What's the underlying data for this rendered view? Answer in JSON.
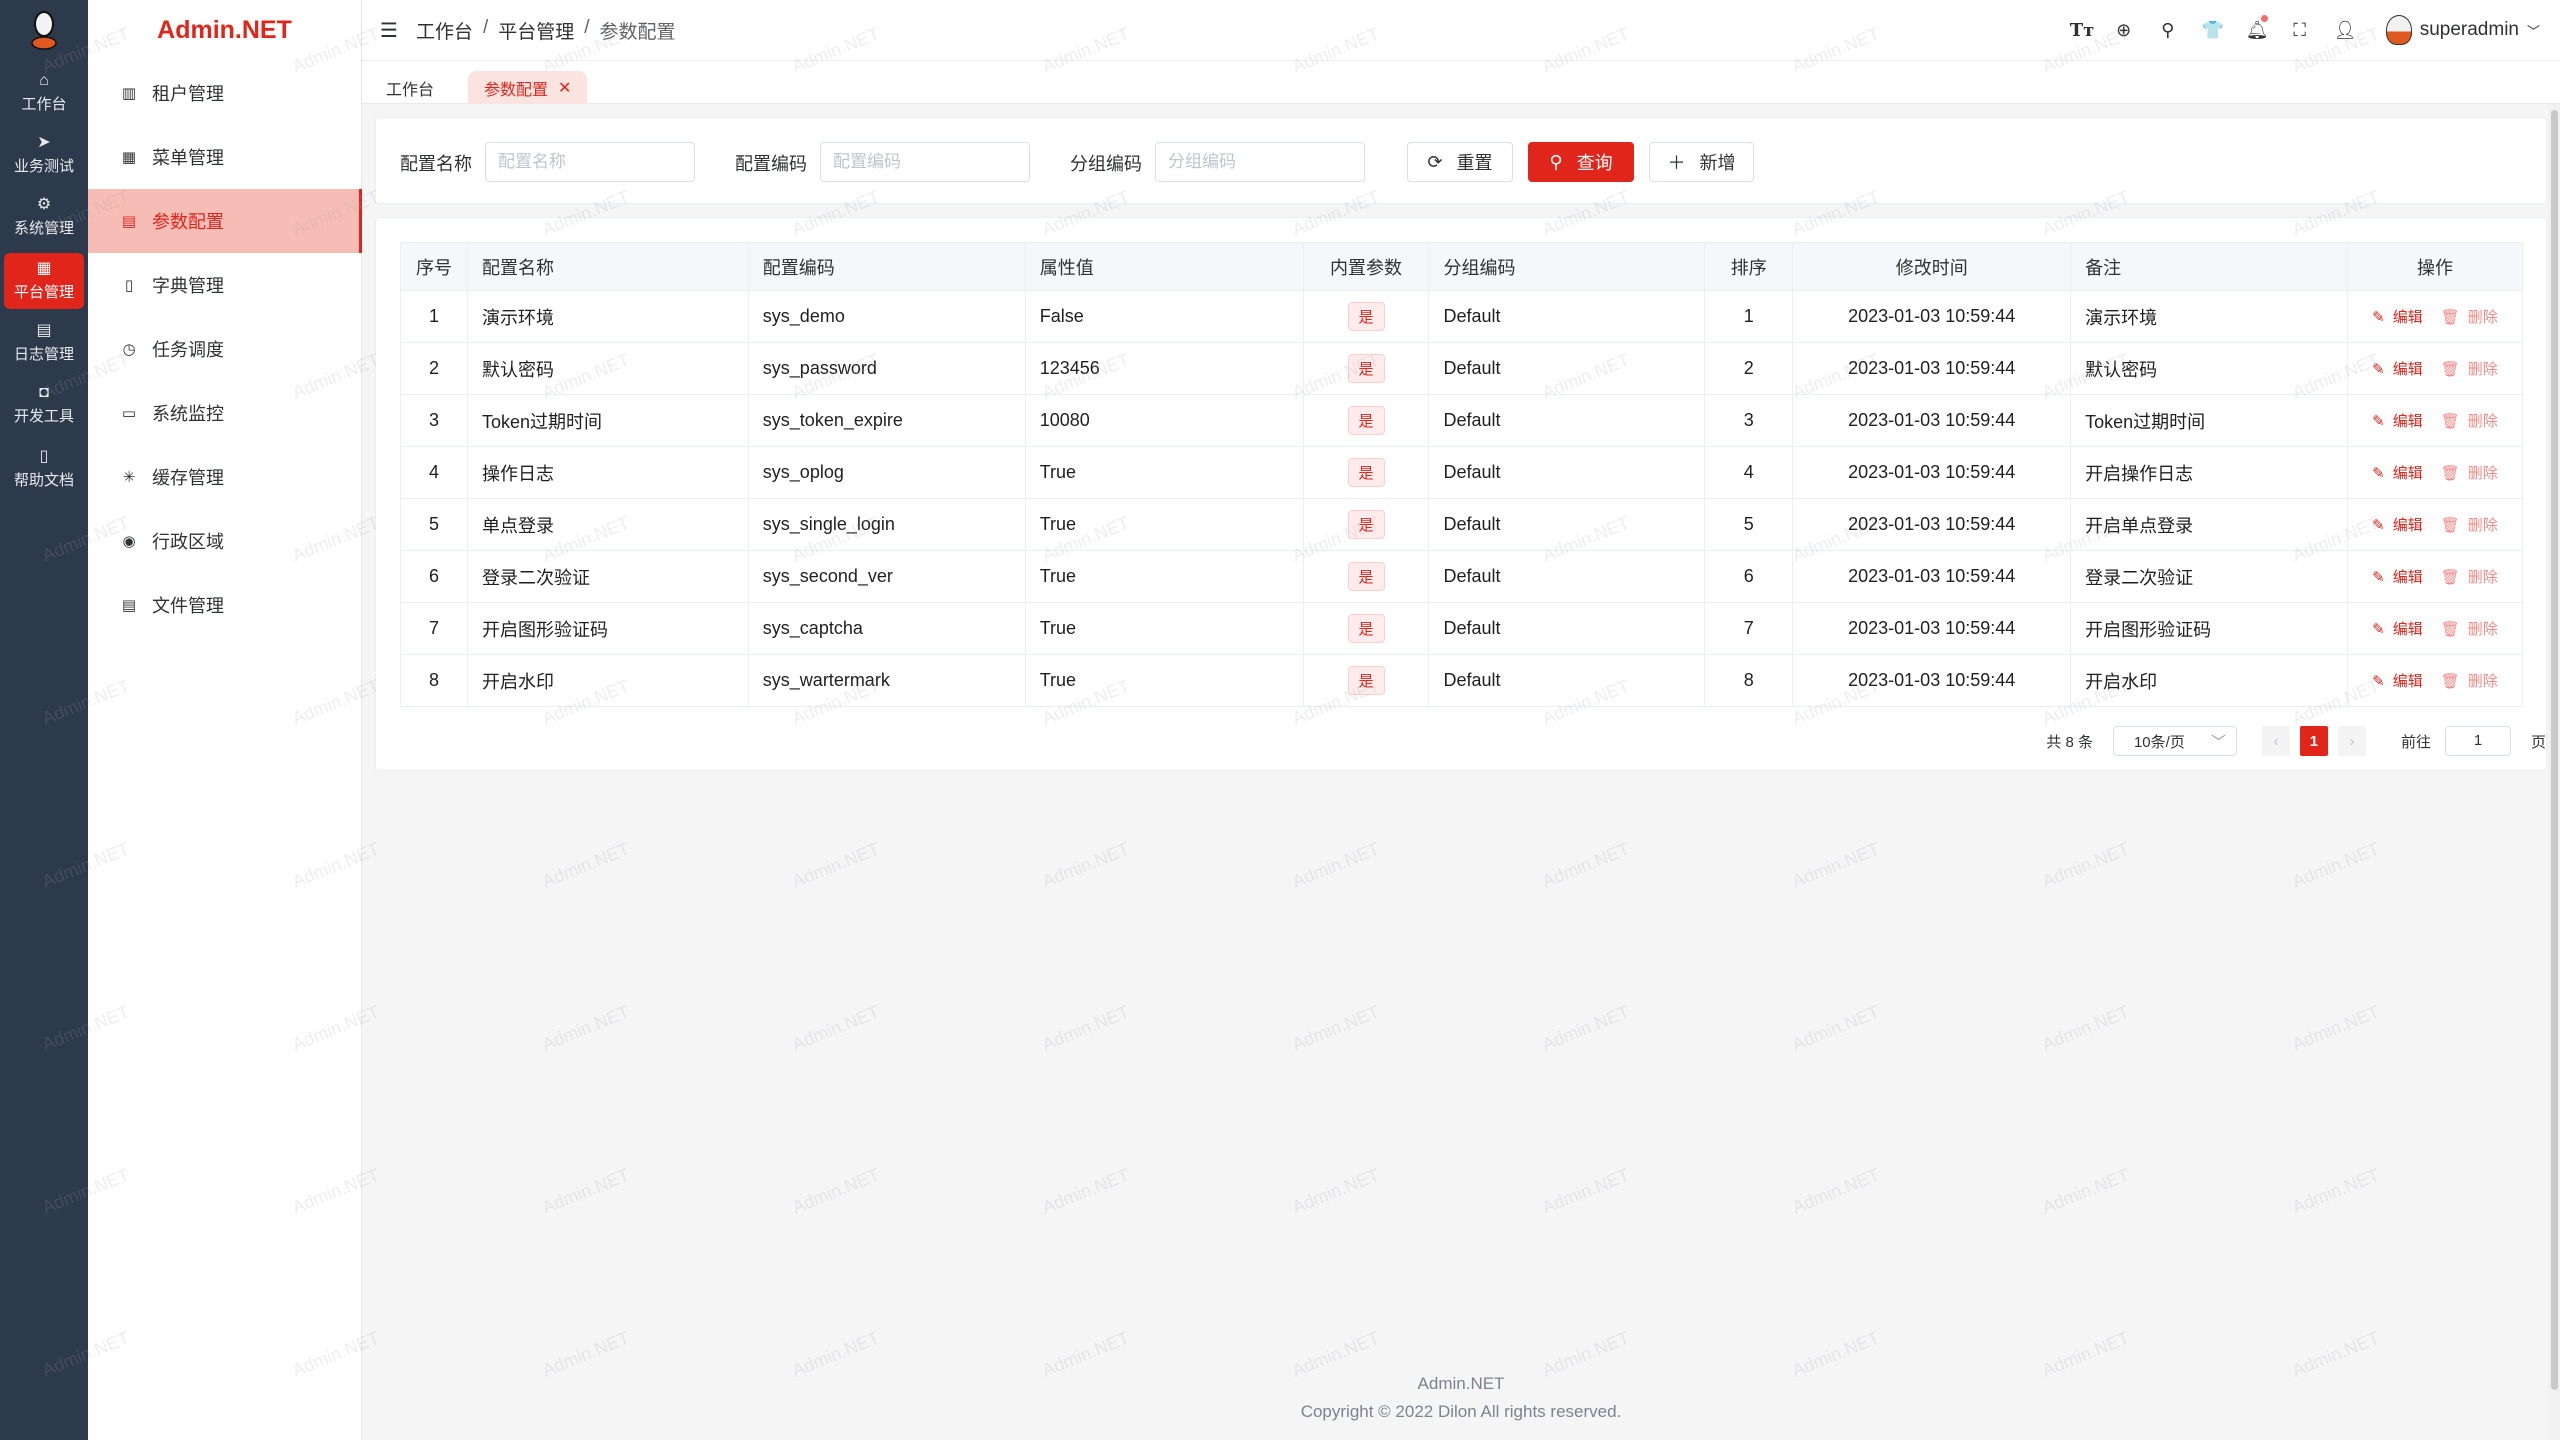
{
  "brand": "Admin.NET",
  "rail": [
    {
      "icon": "home-icon",
      "label": "工作台"
    },
    {
      "icon": "send-icon",
      "label": "业务测试"
    },
    {
      "icon": "gear-icon",
      "label": "系统管理"
    },
    {
      "icon": "grid-icon",
      "label": "平台管理",
      "active": true
    },
    {
      "icon": "document-icon",
      "label": "日志管理"
    },
    {
      "icon": "chip-icon",
      "label": "开发工具"
    },
    {
      "icon": "book-icon",
      "label": "帮助文档"
    }
  ],
  "submenu": [
    {
      "icon": "building-icon",
      "label": "租户管理"
    },
    {
      "icon": "grid-icon",
      "label": "菜单管理"
    },
    {
      "icon": "document-icon",
      "label": "参数配置",
      "active": true
    },
    {
      "icon": "book-icon",
      "label": "字典管理"
    },
    {
      "icon": "alarm-icon",
      "label": "任务调度"
    },
    {
      "icon": "monitor-icon",
      "label": "系统监控"
    },
    {
      "icon": "loading-icon",
      "label": "缓存管理"
    },
    {
      "icon": "location-icon",
      "label": "行政区域"
    },
    {
      "icon": "file-icon",
      "label": "文件管理"
    }
  ],
  "breadcrumb": [
    "工作台",
    "平台管理",
    "参数配置"
  ],
  "user": {
    "name": "superadmin"
  },
  "tabs": [
    {
      "label": "工作台"
    },
    {
      "label": "参数配置",
      "active": true
    }
  ],
  "search": {
    "name_label": "配置名称",
    "name_placeholder": "配置名称",
    "code_label": "配置编码",
    "code_placeholder": "配置编码",
    "group_label": "分组编码",
    "group_placeholder": "分组编码",
    "reset": "重置",
    "query": "查询",
    "add": "新增"
  },
  "table": {
    "columns": [
      "序号",
      "配置名称",
      "配置编码",
      "属性值",
      "内置参数",
      "分组编码",
      "排序",
      "修改时间",
      "备注",
      "操作"
    ],
    "edit": "编辑",
    "delete": "删除",
    "rows": [
      [
        "1",
        "演示环境",
        "sys_demo",
        "False",
        "是",
        "Default",
        "1",
        "2023-01-03 10:59:44",
        "演示环境"
      ],
      [
        "2",
        "默认密码",
        "sys_password",
        "123456",
        "是",
        "Default",
        "2",
        "2023-01-03 10:59:44",
        "默认密码"
      ],
      [
        "3",
        "Token过期时间",
        "sys_token_expire",
        "10080",
        "是",
        "Default",
        "3",
        "2023-01-03 10:59:44",
        "Token过期时间"
      ],
      [
        "4",
        "操作日志",
        "sys_oplog",
        "True",
        "是",
        "Default",
        "4",
        "2023-01-03 10:59:44",
        "开启操作日志"
      ],
      [
        "5",
        "单点登录",
        "sys_single_login",
        "True",
        "是",
        "Default",
        "5",
        "2023-01-03 10:59:44",
        "开启单点登录"
      ],
      [
        "6",
        "登录二次验证",
        "sys_second_ver",
        "True",
        "是",
        "Default",
        "6",
        "2023-01-03 10:59:44",
        "登录二次验证"
      ],
      [
        "7",
        "开启图形验证码",
        "sys_captcha",
        "True",
        "是",
        "Default",
        "7",
        "2023-01-03 10:59:44",
        "开启图形验证码"
      ],
      [
        "8",
        "开启水印",
        "sys_wartermark",
        "True",
        "是",
        "Default",
        "8",
        "2023-01-03 10:59:44",
        "开启水印"
      ]
    ]
  },
  "pagination": {
    "total": "共 8 条",
    "page_size": "10条/页",
    "current": "1",
    "goto": "前往",
    "goto_value": "1",
    "page_suffix": "页"
  },
  "footer": {
    "line1": "Admin.NET",
    "line2": "Copyright © 2022 Dilon All rights reserved."
  },
  "watermark": "Admin.NET",
  "colors": {
    "primary": "#e0251b",
    "rail": "#2d3a4b",
    "active_menu_bg": "#f5bdb6"
  }
}
